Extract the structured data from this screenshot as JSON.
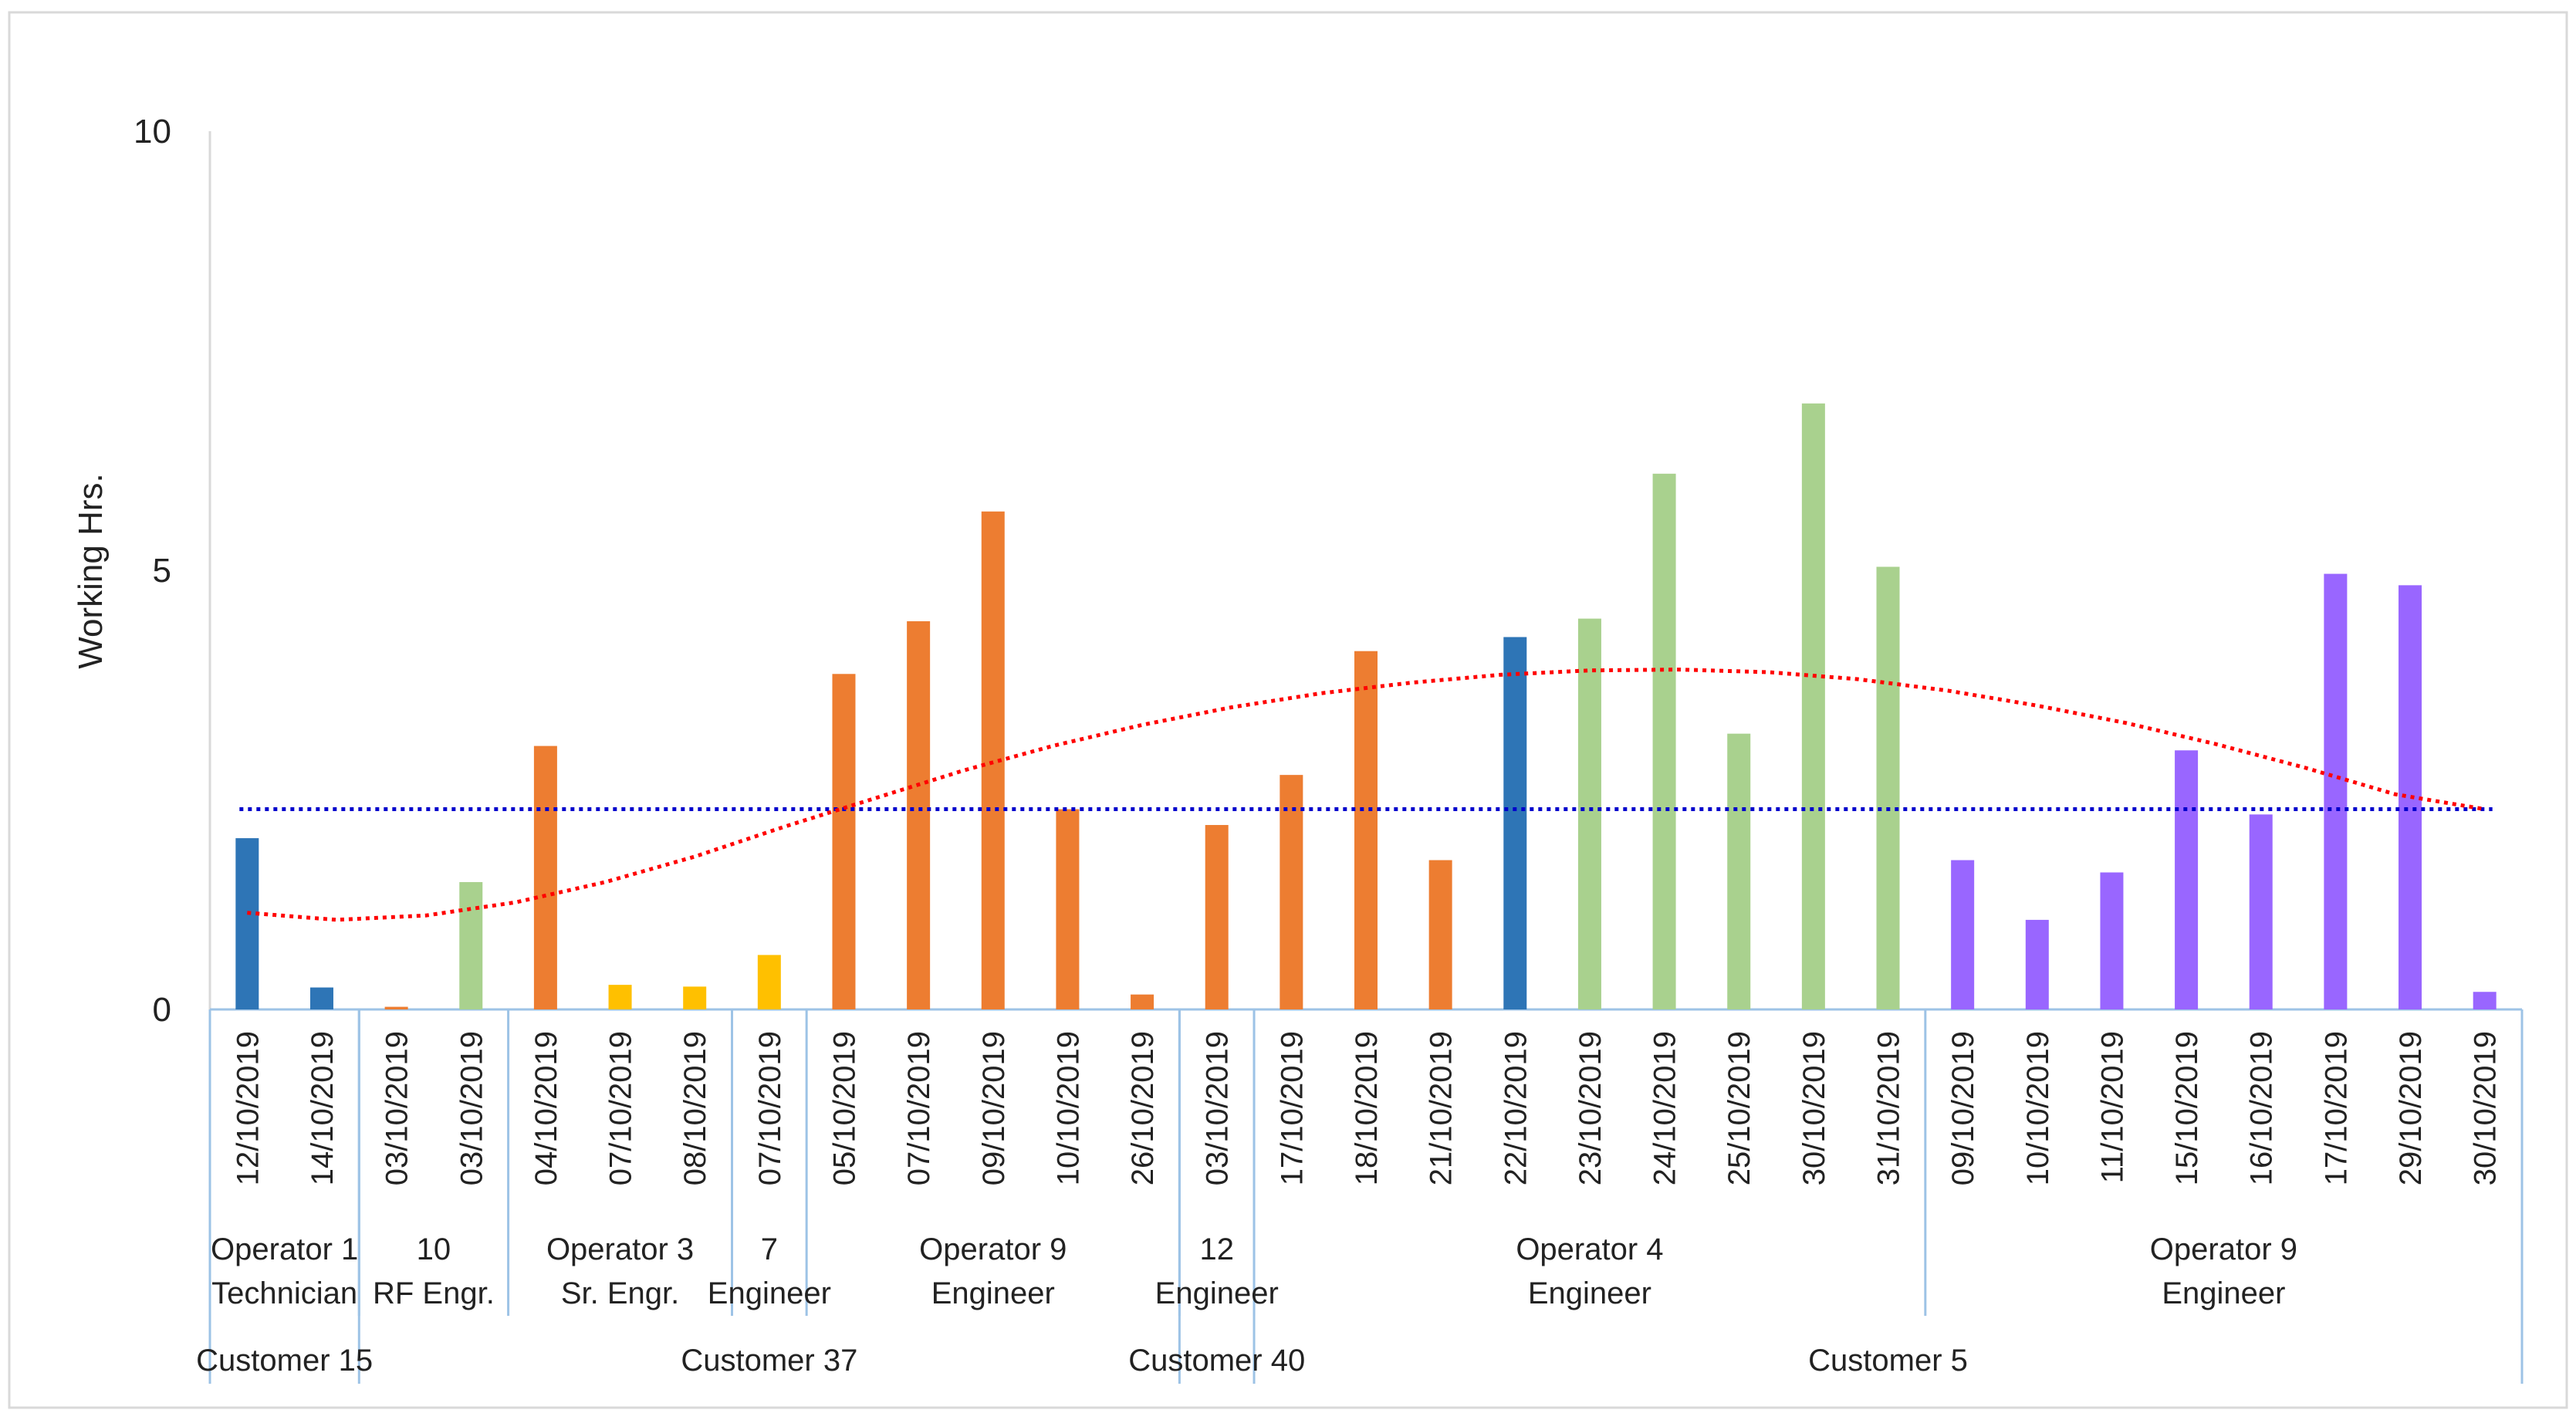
{
  "chart_data": {
    "type": "bar",
    "title": "",
    "xlabel": "",
    "ylabel": "Working Hrs.",
    "ylim": [
      0,
      10
    ],
    "yticks": [
      0,
      5,
      10
    ],
    "grid": false,
    "legend": "none",
    "categories": [
      "12/10/2019",
      "14/10/2019",
      "03/10/2019",
      "03/10/2019",
      "04/10/2019",
      "07/10/2019",
      "08/10/2019",
      "07/10/2019",
      "05/10/2019",
      "07/10/2019",
      "09/10/2019",
      "10/10/2019",
      "26/10/2019",
      "03/10/2019",
      "17/10/2019",
      "18/10/2019",
      "21/10/2019",
      "22/10/2019",
      "23/10/2019",
      "24/10/2019",
      "25/10/2019",
      "30/10/2019",
      "31/10/2019",
      "09/10/2019",
      "10/10/2019",
      "11/10/2019",
      "15/10/2019",
      "16/10/2019",
      "17/10/2019",
      "29/10/2019",
      "30/10/2019"
    ],
    "values": [
      1.95,
      0.25,
      0.03,
      1.45,
      3.0,
      0.28,
      0.26,
      0.62,
      3.82,
      4.42,
      5.67,
      2.28,
      0.17,
      2.1,
      2.67,
      4.08,
      1.7,
      4.24,
      4.45,
      6.1,
      3.14,
      6.9,
      5.04,
      1.7,
      1.02,
      1.56,
      2.95,
      2.22,
      4.96,
      4.83,
      0.2
    ],
    "bar_colors": [
      "#2e75b6",
      "#2e75b6",
      "#ed7d31",
      "#a9d18e",
      "#ed7d31",
      "#ffc000",
      "#ffc000",
      "#ffc000",
      "#ed7d31",
      "#ed7d31",
      "#ed7d31",
      "#ed7d31",
      "#ed7d31",
      "#ed7d31",
      "#ed7d31",
      "#ed7d31",
      "#ed7d31",
      "#2e75b6",
      "#a9d18e",
      "#a9d18e",
      "#a9d18e",
      "#a9d18e",
      "#a9d18e",
      "#9966ff",
      "#9966ff",
      "#9966ff",
      "#9966ff",
      "#9966ff",
      "#9966ff",
      "#9966ff",
      "#9966ff"
    ],
    "average_line": {
      "value": 2.28,
      "color": "#0000cc",
      "style": "dotted"
    },
    "trend_line": {
      "type": "polynomial",
      "color": "#ff0000",
      "style": "dotted",
      "values": [
        1.1,
        1.02,
        1.07,
        1.22,
        1.45,
        1.74,
        2.08,
        2.4,
        2.72,
        3.0,
        3.24,
        3.44,
        3.6,
        3.72,
        3.81,
        3.86,
        3.87,
        3.84,
        3.76,
        3.63,
        3.46,
        3.26,
        3.02,
        2.75,
        2.45,
        2.28
      ]
    },
    "operator_groups": [
      {
        "name": "Operator 1",
        "role": "Technician",
        "start": 0,
        "end": 1
      },
      {
        "name": "10",
        "role": "RF Engr.",
        "start": 2,
        "end": 3
      },
      {
        "name": "Operator 3",
        "role": "Sr. Engr.",
        "start": 4,
        "end": 6
      },
      {
        "name": "7",
        "role": "Engineer",
        "start": 7,
        "end": 7
      },
      {
        "name": "Operator 9",
        "role": "Engineer",
        "start": 8,
        "end": 12
      },
      {
        "name": "12",
        "role": "Engineer",
        "start": 13,
        "end": 13
      },
      {
        "name": "Operator 4",
        "role": "Engineer",
        "start": 14,
        "end": 22
      },
      {
        "name": "Operator 9",
        "role": "Engineer",
        "start": 23,
        "end": 30
      }
    ],
    "customer_groups": [
      {
        "name": "Customer 15",
        "start": 0,
        "end": 1
      },
      {
        "name": "Customer 37",
        "start": 2,
        "end": 12
      },
      {
        "name": "Customer 40",
        "start": 13,
        "end": 13
      },
      {
        "name": "Customer 5",
        "start": 14,
        "end": 30
      }
    ]
  }
}
